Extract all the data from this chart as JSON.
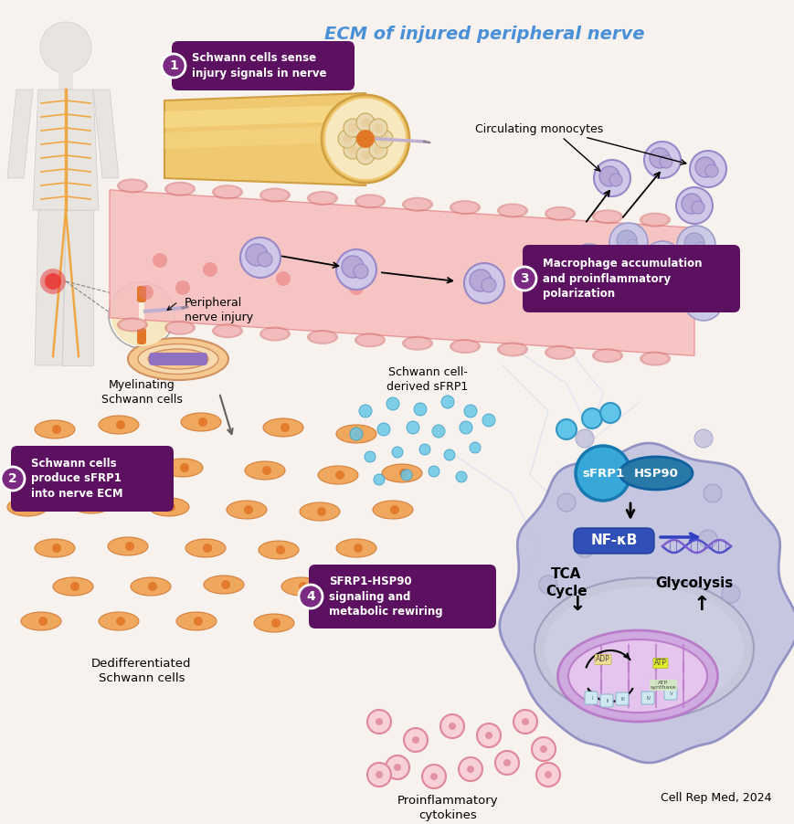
{
  "bg_color": "#f7f2ee",
  "title_text": "ECM of injured peripheral nerve",
  "title_color": "#4a90d9",
  "citation": "Cell Rep Med, 2024",
  "box1_text": "Schwann cells sense\ninjury signals in nerve",
  "box2_text": "Schwann cells\nproduce sFRP1\ninto nerve ECM",
  "box3_text": "Macrophage accumulation\nand proinflammatory\npolarization",
  "box4_text": "SFRP1-HSP90\nsignaling and\nmetabolic rewiring",
  "box_bg": "#5c1060",
  "box_text_color": "#ffffff",
  "num_circle_color": "#7a2a80",
  "label_pni": "Peripheral\nnerve injury",
  "label_myelin": "Myelinating\nSchwann cells",
  "label_dediff": "Dedifferentiated\nSchwann cells",
  "label_mono": "Circulating monocytes",
  "label_sfrp1": "Schwann cell-\nderived sFRP1",
  "label_cyto": "Proinflammatory\ncytokines",
  "label_tca": "TCA\nCycle",
  "label_glyco": "Glycolysis",
  "label_nfkb": "NF-κB",
  "label_sfrp1_btn": "sFRP1",
  "label_hsp90_btn": "HSP90",
  "vessel_fill": "#f5bfbf",
  "vessel_border": "#e89090",
  "vessel_cell_border": "#d87878",
  "monocyte_fill": "#d0c8e8",
  "monocyte_border": "#9888c8",
  "macrophage_fill": "#c8c8e8",
  "macrophage_border": "#9898c8",
  "main_cell_fill": "#c0c0e0",
  "main_cell_border": "#8888c0",
  "nucleus_fill": "#c8c8dc",
  "mito_outer": "#d0a8e0",
  "mito_inner": "#e8c8f0",
  "mito_cristae": "#b878c8",
  "sfrp1_btn_color": "#38a8d8",
  "hsp90_btn_color": "#2878a8",
  "nfkb_color": "#3050b8",
  "dna_color": "#5050c0",
  "sfrp1_dot_color": "#6ac8e8",
  "sfrp1_dot_border": "#40a0c8",
  "rbc_color": "#e87878",
  "schwann_orange": "#f0a050",
  "schwann_border": "#d07830",
  "nerve_bundle_color": "#f0c870",
  "nerve_bundle_border": "#d0a040",
  "nerve_section_fill": "#f8e8c0",
  "axon_color": "#e07828",
  "body_color": "#e8e4e0",
  "nerve_line_color": "#f0a844",
  "injury_color": "#e83030",
  "myelin_outer": "#f5c890",
  "myelin_purple": "#9070c0",
  "cyto_fill": "#f8d0d8",
  "cyto_border": "#e08898"
}
